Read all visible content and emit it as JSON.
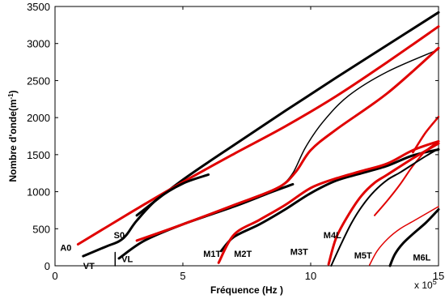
{
  "chart_data": {
    "type": "line",
    "title": "",
    "xlabel": "Fréquence (Hz )",
    "ylabel": "Nombre d'onde(m",
    "ylabel_sup": "-1",
    "ylabel_close": ")",
    "x_multiplier": "x 10",
    "x_multiplier_exp": "5",
    "xlim": [
      0,
      15
    ],
    "ylim": [
      0,
      3500
    ],
    "xticks": [
      "0",
      "5",
      "10",
      "15"
    ],
    "yticks": [
      "0",
      "500",
      "1000",
      "1500",
      "2000",
      "2500",
      "3000",
      "3500"
    ],
    "grid": false,
    "series": [
      {
        "color": "#000000",
        "width": 3,
        "x": [
          3.2,
          5,
          7,
          9,
          11,
          13,
          15
        ],
        "y": [
          680,
          1160,
          1630,
          2090,
          2540,
          2980,
          3420
        ]
      },
      {
        "color": "#e00000",
        "width": 3,
        "x": [
          0.9,
          2,
          3.5,
          5,
          7,
          9,
          11,
          13,
          15
        ],
        "y": [
          290,
          520,
          830,
          1130,
          1510,
          1880,
          2290,
          2750,
          3230
        ]
      },
      {
        "color": "#000000",
        "width": 3,
        "x": [
          1.1,
          2,
          2.5,
          2.8,
          3.2,
          4,
          5,
          6
        ],
        "y": [
          130,
          260,
          330,
          420,
          610,
          900,
          1110,
          1230
        ]
      },
      {
        "color": "#000000",
        "width": 3,
        "x": [
          2.5,
          3.5,
          5,
          7,
          8.5,
          9.3
        ],
        "y": [
          100,
          340,
          560,
          800,
          1000,
          1100
        ]
      },
      {
        "color": "#000000",
        "width": 1.5,
        "x": [
          6,
          7,
          8,
          8.8,
          9.3,
          9.8,
          10.5,
          11.5,
          13,
          15
        ],
        "y": [
          680,
          800,
          930,
          1070,
          1250,
          1600,
          1950,
          2300,
          2620,
          2920
        ]
      },
      {
        "color": "#e00000",
        "width": 3,
        "x": [
          3.2,
          5,
          7,
          8.7,
          9.4,
          10,
          11,
          13,
          15
        ],
        "y": [
          340,
          560,
          820,
          1050,
          1260,
          1560,
          1840,
          2330,
          2940
        ]
      },
      {
        "color": "#000000",
        "width": 3,
        "x": [
          6.5,
          7,
          8,
          9,
          10,
          11,
          12,
          13,
          14,
          15
        ],
        "y": [
          200,
          390,
          560,
          760,
          980,
          1150,
          1250,
          1350,
          1490,
          1570
        ]
      },
      {
        "color": "#e00000",
        "width": 3,
        "x": [
          6.4,
          7,
          8,
          9,
          10,
          11,
          12,
          13,
          14,
          15
        ],
        "y": [
          40,
          420,
          620,
          820,
          1050,
          1180,
          1280,
          1380,
          1560,
          1680
        ]
      },
      {
        "color": "#e00000",
        "width": 2,
        "x": [
          12.5,
          13,
          13.5,
          14,
          14.5,
          15
        ],
        "y": [
          680,
          880,
          1100,
          1350,
          1550,
          1680
        ]
      },
      {
        "color": "#e00000",
        "width": 2.5,
        "x": [
          14,
          14.5,
          15
        ],
        "y": [
          1530,
          1800,
          2010
        ]
      },
      {
        "color": "#000000",
        "width": 2,
        "x": [
          10.8,
          11.2,
          11.6,
          12,
          12.5,
          13,
          13.5,
          14,
          14.5,
          15
        ],
        "y": [
          0,
          300,
          580,
          800,
          1010,
          1160,
          1260,
          1370,
          1480,
          1580
        ]
      },
      {
        "color": "#e00000",
        "width": 3,
        "x": [
          10.7,
          11,
          11.5,
          12,
          12.5,
          13,
          14,
          15
        ],
        "y": [
          20,
          380,
          700,
          950,
          1120,
          1230,
          1450,
          1650
        ]
      },
      {
        "color": "#000000",
        "width": 3,
        "x": [
          13.1,
          13.3,
          13.6,
          14,
          14.5,
          15
        ],
        "y": [
          0,
          160,
          300,
          430,
          580,
          760
        ]
      },
      {
        "color": "#e00000",
        "width": 1.5,
        "x": [
          12.3,
          12.6,
          13,
          13.5,
          14,
          15
        ],
        "y": [
          10,
          200,
          360,
          500,
          600,
          800
        ]
      },
      {
        "color": "#000000",
        "width": 1.5,
        "x": [
          2.35,
          2.35
        ],
        "y": [
          0,
          180
        ]
      }
    ],
    "annotations": [
      {
        "text": "A0",
        "x": 0.2,
        "y": 200
      },
      {
        "text": "S0",
        "x": 2.3,
        "y": 370
      },
      {
        "text": "VT",
        "x": 1.1,
        "y": -45
      },
      {
        "text": "VL",
        "x": 2.6,
        "y": 50
      },
      {
        "text": "M1T",
        "x": 5.8,
        "y": 120
      },
      {
        "text": "M2T",
        "x": 7.0,
        "y": 120
      },
      {
        "text": "M3T",
        "x": 9.2,
        "y": 150
      },
      {
        "text": "M4L",
        "x": 10.5,
        "y": 370
      },
      {
        "text": "M5T",
        "x": 11.7,
        "y": 100
      },
      {
        "text": "M6L",
        "x": 14.0,
        "y": 70
      }
    ]
  }
}
